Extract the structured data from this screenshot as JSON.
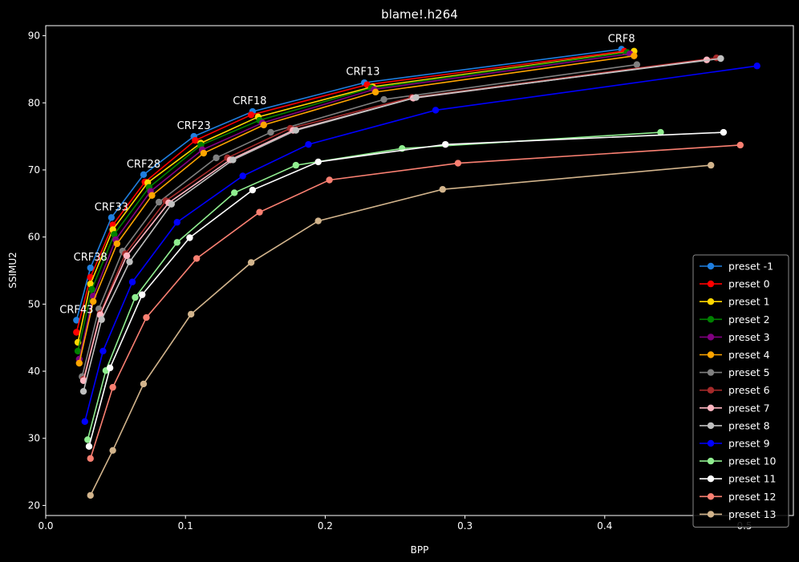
{
  "chart_data": {
    "type": "line",
    "title": "blame!.h264",
    "xlabel": "BPP",
    "ylabel": "SSIMU2",
    "xlim": [
      0.0,
      0.535
    ],
    "ylim": [
      18.5,
      91.5
    ],
    "xticks": [
      0.0,
      0.1,
      0.2,
      0.3,
      0.4,
      0.5
    ],
    "xtick_labels": [
      "0.0",
      "0.1",
      "0.2",
      "0.3",
      "0.4",
      "0.5"
    ],
    "yticks": [
      20,
      30,
      40,
      50,
      60,
      70,
      80,
      90
    ],
    "ytick_labels": [
      "20",
      "30",
      "40",
      "50",
      "60",
      "70",
      "80",
      "90"
    ],
    "grid": false,
    "legend_position": "lower-right",
    "annotations": [
      {
        "text": "CRF8",
        "x": 0.412,
        "y": 88.0
      },
      {
        "text": "CRF13",
        "x": 0.227,
        "y": 83.1
      },
      {
        "text": "CRF18",
        "x": 0.146,
        "y": 78.7
      },
      {
        "text": "CRF23",
        "x": 0.106,
        "y": 75.0
      },
      {
        "text": "CRF28",
        "x": 0.07,
        "y": 69.3
      },
      {
        "text": "CRF33",
        "x": 0.047,
        "y": 62.9
      },
      {
        "text": "CRF38",
        "x": 0.032,
        "y": 55.4
      },
      {
        "text": "CRF43",
        "x": 0.022,
        "y": 47.6
      }
    ],
    "series": [
      {
        "name": "preset -1",
        "color": "#1f7fe0",
        "x": [
          0.022,
          0.032,
          0.047,
          0.07,
          0.106,
          0.148,
          0.228,
          0.412
        ],
        "y": [
          47.6,
          55.4,
          62.9,
          69.3,
          75.0,
          78.7,
          83.0,
          88.0
        ]
      },
      {
        "name": "preset 0",
        "color": "#ff0000",
        "x": [
          0.022,
          0.032,
          0.048,
          0.071,
          0.107,
          0.147,
          0.23,
          0.414
        ],
        "y": [
          45.8,
          54.0,
          61.8,
          68.2,
          74.4,
          78.2,
          82.7,
          87.7
        ]
      },
      {
        "name": "preset 1",
        "color": "#ffd700",
        "x": [
          0.023,
          0.032,
          0.048,
          0.073,
          0.111,
          0.152,
          0.234,
          0.421
        ],
        "y": [
          44.3,
          53.0,
          61.1,
          68.1,
          74.0,
          77.9,
          82.4,
          87.7
        ]
      },
      {
        "name": "preset 2",
        "color": "#008000",
        "x": [
          0.023,
          0.033,
          0.049,
          0.074,
          0.111,
          0.153,
          0.233,
          0.416
        ],
        "y": [
          43.0,
          52.2,
          60.4,
          67.4,
          73.7,
          77.4,
          82.2,
          87.5
        ]
      },
      {
        "name": "preset 3",
        "color": "#800080",
        "x": [
          0.024,
          0.034,
          0.05,
          0.075,
          0.112,
          0.155,
          0.235,
          0.418
        ],
        "y": [
          41.8,
          51.2,
          59.6,
          66.8,
          73.0,
          77.0,
          82.0,
          87.3
        ]
      },
      {
        "name": "preset 4",
        "color": "#ffa500",
        "x": [
          0.024,
          0.034,
          0.051,
          0.076,
          0.113,
          0.156,
          0.236,
          0.421
        ],
        "y": [
          41.2,
          50.4,
          59.0,
          66.2,
          72.5,
          76.7,
          81.6,
          87.0
        ]
      },
      {
        "name": "preset 5",
        "color": "#808080",
        "x": [
          0.026,
          0.038,
          0.055,
          0.081,
          0.122,
          0.161,
          0.242,
          0.423
        ],
        "y": [
          39.2,
          49.3,
          57.9,
          65.2,
          71.8,
          75.6,
          80.5,
          85.7
        ]
      },
      {
        "name": "preset 6",
        "color": "#a52a2a",
        "x": [
          0.027,
          0.039,
          0.057,
          0.086,
          0.13,
          0.175,
          0.262,
          0.48
        ],
        "y": [
          38.8,
          48.6,
          57.5,
          65.4,
          71.8,
          76.2,
          80.8,
          86.7
        ]
      },
      {
        "name": "preset 7",
        "color": "#ffb6c1",
        "x": [
          0.027,
          0.039,
          0.058,
          0.088,
          0.132,
          0.177,
          0.263,
          0.473
        ],
        "y": [
          38.6,
          48.4,
          57.2,
          65.1,
          71.5,
          75.9,
          80.7,
          86.4
        ]
      },
      {
        "name": "preset 8",
        "color": "#c0c0c0",
        "x": [
          0.027,
          0.04,
          0.06,
          0.09,
          0.134,
          0.179,
          0.265,
          0.483
        ],
        "y": [
          37.0,
          47.7,
          56.3,
          64.9,
          71.5,
          75.9,
          80.8,
          86.6
        ]
      },
      {
        "name": "preset 9",
        "color": "#0000ff",
        "x": [
          0.028,
          0.041,
          0.062,
          0.094,
          0.141,
          0.188,
          0.279,
          0.509
        ],
        "y": [
          32.5,
          43.0,
          53.3,
          62.2,
          69.1,
          73.8,
          78.9,
          85.5
        ]
      },
      {
        "name": "preset 10",
        "color": "#90ee90",
        "x": [
          0.03,
          0.043,
          0.064,
          0.094,
          0.135,
          0.179,
          0.255,
          0.44
        ],
        "y": [
          29.8,
          40.1,
          51.0,
          59.2,
          66.6,
          70.7,
          73.2,
          75.6
        ]
      },
      {
        "name": "preset 11",
        "color": "#ffffff",
        "x": [
          0.031,
          0.046,
          0.069,
          0.103,
          0.148,
          0.195,
          0.286,
          0.485
        ],
        "y": [
          28.8,
          40.5,
          51.4,
          59.9,
          67.0,
          71.2,
          73.8,
          75.6
        ]
      },
      {
        "name": "preset 12",
        "color": "#fa8072",
        "x": [
          0.032,
          0.048,
          0.072,
          0.108,
          0.153,
          0.203,
          0.295,
          0.497
        ],
        "y": [
          27.0,
          37.6,
          48.0,
          56.8,
          63.7,
          68.5,
          71.0,
          73.7
        ]
      },
      {
        "name": "preset 13",
        "color": "#d2b48c",
        "x": [
          0.032,
          0.048,
          0.07,
          0.104,
          0.147,
          0.195,
          0.284,
          0.476
        ],
        "y": [
          21.5,
          28.2,
          38.1,
          48.5,
          56.2,
          62.4,
          67.1,
          70.7
        ]
      }
    ]
  }
}
